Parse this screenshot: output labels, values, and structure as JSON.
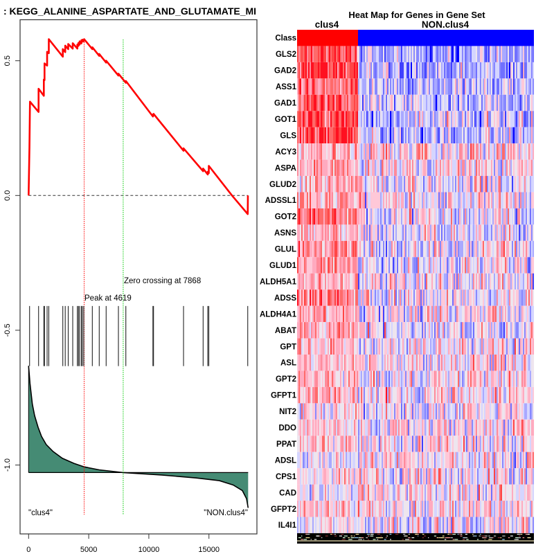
{
  "left_panel": {
    "title": ": KEGG_ALANINE_ASPARTATE_AND_GLUTAMATE_MI"
  },
  "chart_data": [
    {
      "type": "line",
      "title": ": KEGG_ALANINE_ASPARTATE_AND_GLUTAMATE_MI",
      "xlabel": "",
      "ylabel": "",
      "xlim": [
        0,
        18260
      ],
      "ylim": [
        -1.256,
        0.653
      ],
      "grid": false,
      "x_ticks": [
        0,
        5000,
        10000,
        15000
      ],
      "x_tick_labels": [
        "0",
        "5000",
        "10000",
        "15000"
      ],
      "y_ticks": [
        0.5,
        0.0,
        -0.5,
        -1.0
      ],
      "y_tick_labels": [
        "0.5",
        "0.0",
        "-0.5",
        "-1.0"
      ],
      "zero_line": 0.0,
      "series": [
        {
          "name": "running_enrichment_score",
          "color": "#FF0000",
          "points": [
            [
              0,
              0.0
            ],
            [
              70,
              0.178
            ],
            [
              115,
              0.348
            ],
            [
              830,
              0.31
            ],
            [
              830,
              0.396
            ],
            [
              1267,
              0.37
            ],
            [
              1267,
              0.43
            ],
            [
              1325,
              0.428
            ],
            [
              1325,
              0.49
            ],
            [
              1540,
              0.482
            ],
            [
              1540,
              0.533
            ],
            [
              1680,
              0.528
            ],
            [
              1680,
              0.58
            ],
            [
              2845,
              0.515
            ],
            [
              2845,
              0.543
            ],
            [
              3047,
              0.532
            ],
            [
              3047,
              0.556
            ],
            [
              3295,
              0.543
            ],
            [
              3295,
              0.562
            ],
            [
              3670,
              0.545
            ],
            [
              3670,
              0.565
            ],
            [
              4055,
              0.545
            ],
            [
              4055,
              0.56
            ],
            [
              4147,
              0.555
            ],
            [
              4147,
              0.566
            ],
            [
              4245,
              0.56
            ],
            [
              4245,
              0.572
            ],
            [
              4390,
              0.564
            ],
            [
              4390,
              0.576
            ],
            [
              4475,
              0.571
            ],
            [
              4475,
              0.578
            ],
            [
              4590,
              0.572
            ],
            [
              4619,
              0.58
            ],
            [
              5300,
              0.543
            ],
            [
              5300,
              0.55
            ],
            [
              5875,
              0.518
            ],
            [
              5875,
              0.525
            ],
            [
              6450,
              0.493
            ],
            [
              6450,
              0.5
            ],
            [
              7470,
              0.445
            ],
            [
              7470,
              0.452
            ],
            [
              8088,
              0.418
            ],
            [
              8088,
              0.425
            ],
            [
              10340,
              0.293
            ],
            [
              10340,
              0.3
            ],
            [
              10390,
              0.297
            ],
            [
              10390,
              0.303
            ],
            [
              12886,
              0.166
            ],
            [
              12886,
              0.175
            ],
            [
              14516,
              0.09
            ],
            [
              14516,
              0.1
            ],
            [
              14900,
              0.078
            ],
            [
              14900,
              0.088
            ],
            [
              14988,
              0.083
            ],
            [
              14988,
              0.11
            ],
            [
              16918,
              0.0
            ],
            [
              18226,
              -0.069
            ],
            [
              18240,
              0.0
            ]
          ]
        },
        {
          "name": "ranked_list_metric",
          "color": "#458B74",
          "baseline": -1.028,
          "points": [
            [
              0,
              -0.632
            ],
            [
              115,
              -0.697
            ],
            [
              311,
              -0.774
            ],
            [
              501,
              -0.817
            ],
            [
              789,
              -0.86
            ],
            [
              1077,
              -0.894
            ],
            [
              1463,
              -0.924
            ],
            [
              2039,
              -0.95
            ],
            [
              2805,
              -0.975
            ],
            [
              3767,
              -0.994
            ],
            [
              4631,
              -1.007
            ],
            [
              5875,
              -1.018
            ],
            [
              7857,
              -1.028
            ],
            [
              11060,
              -1.037
            ],
            [
              13940,
              -1.048
            ],
            [
              15864,
              -1.058
            ],
            [
              17016,
              -1.074
            ],
            [
              17782,
              -1.095
            ],
            [
              18127,
              -1.125
            ],
            [
              18260,
              -1.159
            ]
          ]
        }
      ],
      "hits": [
        81,
        830,
        1267,
        1325,
        1540,
        1680,
        2845,
        3047,
        3295,
        3670,
        4055,
        4147,
        4245,
        4390,
        4475,
        4590,
        5300,
        5875,
        6450,
        7470,
        8088,
        10340,
        10390,
        12886,
        14516,
        14900,
        14988,
        18226
      ],
      "hit_range": [
        -0.633,
        -0.41
      ],
      "peak": {
        "rank": 4619,
        "label": "Peak at 4619",
        "color": "#FF0000"
      },
      "zero_crossing": {
        "rank": 7868,
        "label": "Zero crossing at 7868",
        "color": "#00CC00"
      },
      "class_labels": {
        "left": "\"clus4\"",
        "right": "\"NON.clus4\""
      }
    },
    {
      "type": "heatmap",
      "title": "Heat Map for Genes in Gene Set",
      "class_row_label": "Class",
      "groups": [
        {
          "name": "clus4",
          "color": "#FF0000",
          "fraction": 0.26
        },
        {
          "name": "NON.clus4",
          "color": "#0000FF",
          "fraction": 0.74
        }
      ],
      "value_range": [
        -1,
        1
      ],
      "color_scale": [
        "#0000FF",
        "#4040FF",
        "#7070FF",
        "#8888FF",
        "#A9A9FF",
        "#D5D5FF",
        "#EEE5EE",
        "#FFC8D8",
        "#FFAABF",
        "#FF8A9A",
        "#FF6A6A",
        "#FF4545",
        "#FF1020"
      ],
      "rows": [
        {
          "gene": "GLS2",
          "clus4_mean": 0.8,
          "non_mean": -0.35
        },
        {
          "gene": "GAD2",
          "clus4_mean": 0.75,
          "non_mean": -0.35
        },
        {
          "gene": "ASS1",
          "clus4_mean": 0.6,
          "non_mean": -0.25
        },
        {
          "gene": "GAD1",
          "clus4_mean": 0.65,
          "non_mean": -0.2
        },
        {
          "gene": "GOT1",
          "clus4_mean": 0.8,
          "non_mean": -0.2
        },
        {
          "gene": "GLS",
          "clus4_mean": 0.85,
          "non_mean": -0.25
        },
        {
          "gene": "ACY3",
          "clus4_mean": 0.35,
          "non_mean": 0.1
        },
        {
          "gene": "ASPA",
          "clus4_mean": 0.35,
          "non_mean": 0.05
        },
        {
          "gene": "GLUD2",
          "clus4_mean": 0.3,
          "non_mean": -0.05
        },
        {
          "gene": "ADSSL1",
          "clus4_mean": 0.3,
          "non_mean": 0.0
        },
        {
          "gene": "GOT2",
          "clus4_mean": 0.55,
          "non_mean": -0.05
        },
        {
          "gene": "ASNS",
          "clus4_mean": 0.3,
          "non_mean": -0.1
        },
        {
          "gene": "GLUL",
          "clus4_mean": 0.45,
          "non_mean": -0.05
        },
        {
          "gene": "GLUD1",
          "clus4_mean": 0.4,
          "non_mean": -0.05
        },
        {
          "gene": "ALDH5A1",
          "clus4_mean": 0.35,
          "non_mean": 0.0
        },
        {
          "gene": "ADSS",
          "clus4_mean": 0.55,
          "non_mean": 0.0
        },
        {
          "gene": "ALDH4A1",
          "clus4_mean": 0.3,
          "non_mean": 0.0
        },
        {
          "gene": "ABAT",
          "clus4_mean": 0.35,
          "non_mean": -0.05
        },
        {
          "gene": "GPT",
          "clus4_mean": 0.2,
          "non_mean": 0.0
        },
        {
          "gene": "ASL",
          "clus4_mean": 0.2,
          "non_mean": 0.05
        },
        {
          "gene": "GPT2",
          "clus4_mean": 0.25,
          "non_mean": 0.05
        },
        {
          "gene": "GFPT1",
          "clus4_mean": 0.3,
          "non_mean": 0.05
        },
        {
          "gene": "NIT2",
          "clus4_mean": 0.0,
          "non_mean": -0.05
        },
        {
          "gene": "DDO",
          "clus4_mean": 0.15,
          "non_mean": 0.05
        },
        {
          "gene": "PPAT",
          "clus4_mean": 0.15,
          "non_mean": 0.05
        },
        {
          "gene": "ADSL",
          "clus4_mean": -0.1,
          "non_mean": 0.05
        },
        {
          "gene": "CPS1",
          "clus4_mean": 0.1,
          "non_mean": 0.05
        },
        {
          "gene": "CAD",
          "clus4_mean": -0.1,
          "non_mean": 0.05
        },
        {
          "gene": "GFPT2",
          "clus4_mean": 0.2,
          "non_mean": 0.05
        },
        {
          "gene": "IL4I1",
          "clus4_mean": -0.05,
          "non_mean": -0.05
        }
      ]
    }
  ]
}
